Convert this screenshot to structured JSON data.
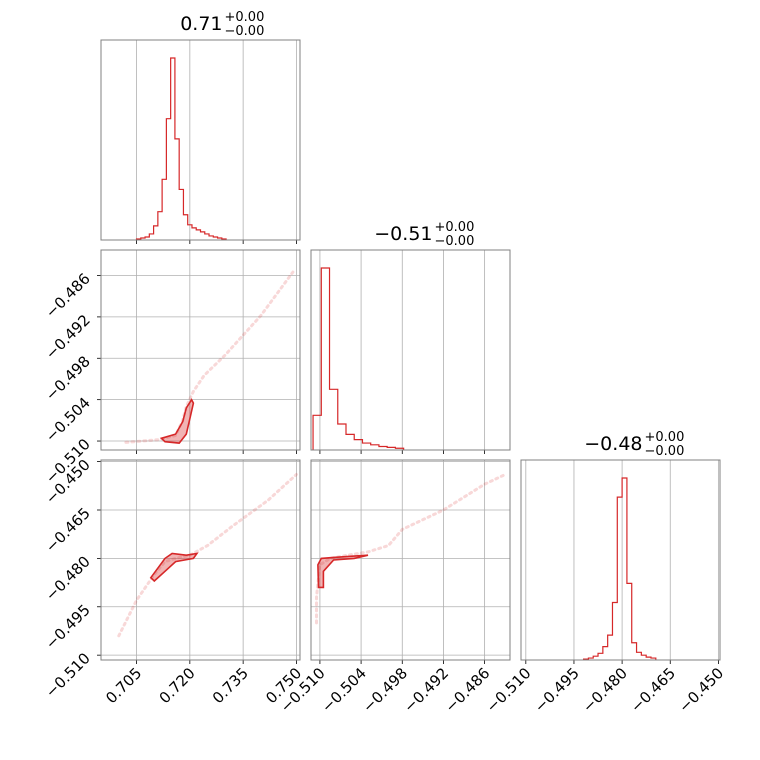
{
  "chart_data": {
    "type": "corner",
    "parameters": [
      {
        "id": "p0",
        "title_value": "0.71",
        "title_plus": "+0.00",
        "title_minus": "−0.00",
        "range": [
          0.695,
          0.751
        ],
        "ticks": [
          0.705,
          0.72,
          0.735,
          0.75
        ],
        "tick_labels": [
          "0.705",
          "0.720",
          "0.735",
          "0.750"
        ]
      },
      {
        "id": "p1",
        "title_value": "−0.51",
        "title_plus": "+0.00",
        "title_minus": "−0.00",
        "range": [
          -0.5113,
          -0.4823
        ],
        "ticks": [
          -0.51,
          -0.504,
          -0.498,
          -0.492,
          -0.486
        ],
        "tick_labels": [
          "−0.510",
          "−0.504",
          "−0.498",
          "−0.492",
          "−0.486"
        ]
      },
      {
        "id": "p2",
        "title_value": "−0.48",
        "title_plus": "+0.00",
        "title_minus": "−0.00",
        "range": [
          -0.5115,
          -0.4495
        ],
        "ticks": [
          -0.51,
          -0.495,
          -0.48,
          -0.465,
          -0.45
        ],
        "tick_labels": [
          "−0.510",
          "−0.495",
          "−0.480",
          "−0.465",
          "−0.450"
        ]
      }
    ],
    "histograms": [
      {
        "param": "p0",
        "bin_edges": [
          0.705,
          0.7062,
          0.7074,
          0.7086,
          0.7098,
          0.711,
          0.7122,
          0.7134,
          0.7146,
          0.7158,
          0.717,
          0.7182,
          0.7194,
          0.7206,
          0.7218,
          0.723,
          0.7242,
          0.7254,
          0.7266,
          0.7278,
          0.729,
          0.7302
        ],
        "counts": [
          1,
          2,
          3,
          6,
          14,
          28,
          60,
          120,
          180,
          100,
          50,
          25,
          15,
          12,
          10,
          8,
          6,
          4,
          3,
          2,
          1
        ]
      },
      {
        "param": "p1",
        "bin_edges": [
          -0.511,
          -0.5098,
          -0.5086,
          -0.5074,
          -0.5062,
          -0.505,
          -0.5038,
          -0.5026,
          -0.5014,
          -0.5002,
          -0.499,
          -0.4978
        ],
        "counts": [
          40,
          210,
          70,
          30,
          18,
          12,
          8,
          6,
          4,
          3,
          2
        ]
      },
      {
        "param": "p2",
        "bin_edges": [
          -0.492,
          -0.4905,
          -0.489,
          -0.4875,
          -0.486,
          -0.4845,
          -0.483,
          -0.4815,
          -0.48,
          -0.4785,
          -0.477,
          -0.4755,
          -0.474,
          -0.4725,
          -0.471,
          -0.4695
        ],
        "counts": [
          1,
          2,
          4,
          7,
          14,
          26,
          60,
          170,
          190,
          80,
          18,
          8,
          5,
          3,
          2
        ]
      }
    ],
    "pairs": [
      {
        "x": "p0",
        "y": "p1",
        "trace": [
          [
            0.702,
            -0.5102
          ],
          [
            0.711,
            -0.5098
          ],
          [
            0.716,
            -0.5092
          ],
          [
            0.718,
            -0.507
          ],
          [
            0.719,
            -0.505
          ],
          [
            0.721,
            -0.5028
          ],
          [
            0.724,
            -0.5005
          ],
          [
            0.73,
            -0.4975
          ],
          [
            0.74,
            -0.4918
          ],
          [
            0.749,
            -0.4855
          ]
        ],
        "contour": [
          [
            0.712,
            -0.5096
          ],
          [
            0.716,
            -0.509
          ],
          [
            0.718,
            -0.5072
          ],
          [
            0.719,
            -0.5052
          ],
          [
            0.7205,
            -0.504
          ],
          [
            0.721,
            -0.5045
          ],
          [
            0.72,
            -0.5068
          ],
          [
            0.719,
            -0.509
          ],
          [
            0.717,
            -0.5103
          ],
          [
            0.713,
            -0.5101
          ]
        ]
      },
      {
        "x": "p0",
        "y": "p2",
        "trace": [
          [
            0.7,
            -0.504
          ],
          [
            0.705,
            -0.493
          ],
          [
            0.71,
            -0.485
          ],
          [
            0.713,
            -0.481
          ],
          [
            0.716,
            -0.48
          ],
          [
            0.72,
            -0.479
          ],
          [
            0.725,
            -0.476
          ],
          [
            0.732,
            -0.47
          ],
          [
            0.742,
            -0.462
          ],
          [
            0.75,
            -0.454
          ]
        ],
        "contour": [
          [
            0.709,
            -0.486
          ],
          [
            0.713,
            -0.48
          ],
          [
            0.715,
            -0.4785
          ],
          [
            0.719,
            -0.479
          ],
          [
            0.722,
            -0.4785
          ],
          [
            0.721,
            -0.48
          ],
          [
            0.716,
            -0.481
          ],
          [
            0.713,
            -0.484
          ],
          [
            0.71,
            -0.487
          ]
        ]
      },
      {
        "x": "p1",
        "y": "p2",
        "trace": [
          [
            -0.5105,
            -0.5
          ],
          [
            -0.5105,
            -0.492
          ],
          [
            -0.51,
            -0.482
          ],
          [
            -0.5085,
            -0.48
          ],
          [
            -0.506,
            -0.479
          ],
          [
            -0.503,
            -0.478
          ],
          [
            -0.5,
            -0.476
          ],
          [
            -0.498,
            -0.471
          ],
          [
            -0.492,
            -0.465
          ],
          [
            -0.486,
            -0.457
          ],
          [
            -0.483,
            -0.454
          ]
        ],
        "contour": [
          [
            -0.5102,
            -0.489
          ],
          [
            -0.5103,
            -0.482
          ],
          [
            -0.5098,
            -0.48
          ],
          [
            -0.508,
            -0.4797
          ],
          [
            -0.505,
            -0.4793
          ],
          [
            -0.503,
            -0.479
          ],
          [
            -0.505,
            -0.48
          ],
          [
            -0.508,
            -0.4805
          ],
          [
            -0.5095,
            -0.484
          ],
          [
            -0.5095,
            -0.489
          ]
        ]
      }
    ]
  }
}
